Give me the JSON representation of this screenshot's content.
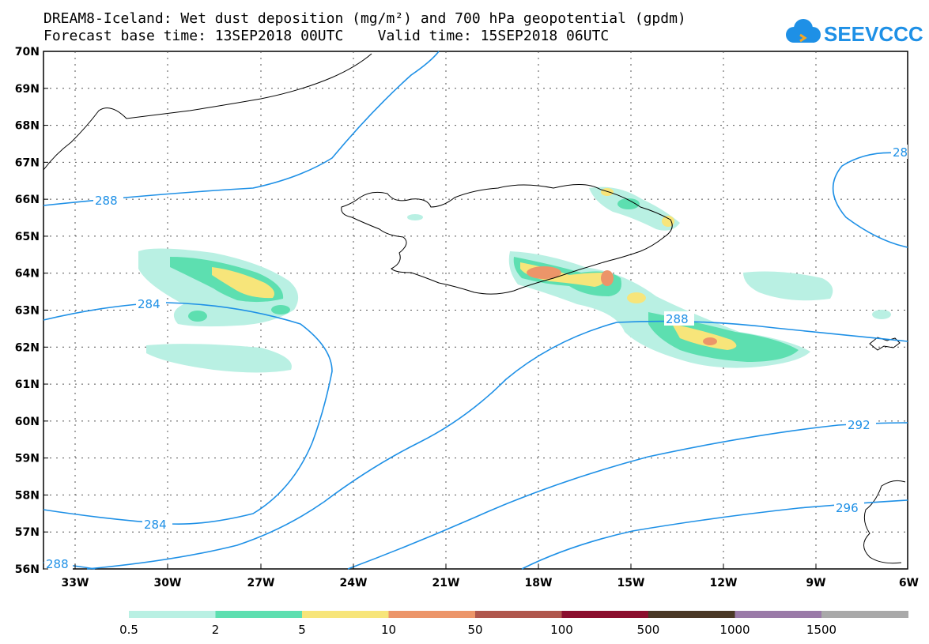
{
  "title_line1": "DREAM8-Iceland: Wet dust deposition (mg/m²) and 700 hPa geopotential (gpdm)",
  "title_line2": "Forecast base time: 13SEP2018 00UTC    Valid time: 15SEP2018 06UTC",
  "logo_text": "SEEVCCC",
  "latitudes": [
    "70N",
    "69N",
    "68N",
    "67N",
    "66N",
    "65N",
    "64N",
    "63N",
    "62N",
    "61N",
    "60N",
    "59N",
    "58N",
    "57N",
    "56N"
  ],
  "longitudes": [
    "33W",
    "30W",
    "27W",
    "24W",
    "21W",
    "18W",
    "15W",
    "12W",
    "9W",
    "6W"
  ],
  "contour_labels": [
    "288",
    "284",
    "284",
    "288",
    "288",
    "292",
    "296",
    "28"
  ],
  "colorbar": {
    "labels": [
      "0.5",
      "2",
      "5",
      "10",
      "50",
      "100",
      "500",
      "1000",
      "1500"
    ],
    "colors": [
      "#b9f0e3",
      "#5ddfb0",
      "#f7e57a",
      "#ec9569",
      "#b0574d",
      "#8b0e2d",
      "#4a3826",
      "#9a7aa8",
      "#a9a9a9"
    ]
  },
  "colors": {
    "contour": "#1e90e6",
    "land_outline": "#000000"
  }
}
